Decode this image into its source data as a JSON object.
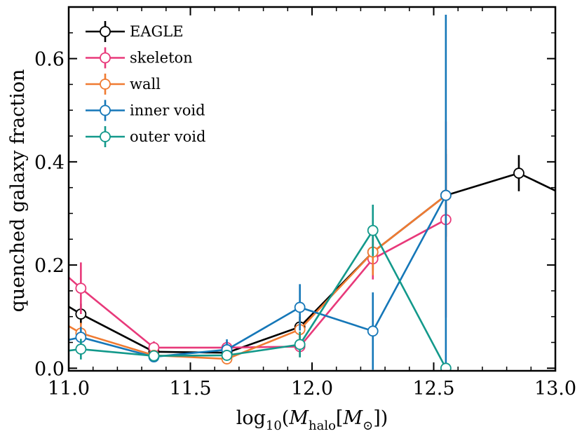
{
  "chart_data": {
    "type": "line",
    "xlabel": "log10(Mhalo[M⊙])",
    "ylabel": "quenched galaxy fraction",
    "xlim": [
      11.0,
      13.0
    ],
    "ylim": [
      -0.005,
      0.7
    ],
    "xticks": [
      11.0,
      11.5,
      12.0,
      12.5,
      13.0
    ],
    "xtick_labels": [
      "11.0",
      "11.5",
      "12.0",
      "12.5",
      "13.0"
    ],
    "yticks": [
      0.0,
      0.2,
      0.4,
      0.6
    ],
    "ytick_labels": [
      "0.0",
      "0.2",
      "0.4",
      "0.6"
    ],
    "legend_position": "top-left",
    "grid": false,
    "series": [
      {
        "name": "EAGLE",
        "color": "#000000",
        "x": [
          10.75,
          11.05,
          11.35,
          11.65,
          11.95,
          12.25,
          12.55,
          12.85,
          13.15
        ],
        "y": [
          0.19,
          0.105,
          0.032,
          0.03,
          0.08,
          0.225,
          0.335,
          0.378,
          0.31
        ],
        "err": [
          0.02,
          0.02,
          0.008,
          0.01,
          0.02,
          0.035,
          0.08,
          0.035,
          0.05
        ]
      },
      {
        "name": "skeleton",
        "color": "#E8397A",
        "x": [
          10.75,
          11.05,
          11.35,
          11.65,
          11.95,
          12.25,
          12.55
        ],
        "y": [
          0.28,
          0.155,
          0.04,
          0.04,
          0.042,
          0.212,
          0.288
        ],
        "err": [
          0.06,
          0.05,
          0.012,
          0.012,
          0.02,
          0.04,
          0.19
        ]
      },
      {
        "name": "wall",
        "color": "#F07B32",
        "x": [
          10.75,
          11.05,
          11.35,
          11.65,
          11.95,
          12.25,
          12.55
        ],
        "y": [
          0.15,
          0.068,
          0.025,
          0.018,
          0.075,
          0.225,
          0.335
        ],
        "err": [
          0.03,
          0.02,
          0.006,
          0.008,
          0.02,
          0.045,
          0.09
        ]
      },
      {
        "name": "inner void",
        "color": "#1577B8",
        "x": [
          10.75,
          11.05,
          11.35,
          11.65,
          11.95,
          12.25,
          12.55
        ],
        "y": [
          0.03,
          0.06,
          0.022,
          0.036,
          0.118,
          0.072,
          0.335
        ],
        "err": [
          0.02,
          0.02,
          0.01,
          0.02,
          0.045,
          0.075,
          0.35
        ]
      },
      {
        "name": "outer void",
        "color": "#13998B",
        "x": [
          10.75,
          11.05,
          11.35,
          11.65,
          11.95,
          12.25,
          12.55
        ],
        "y": [
          0.02,
          0.037,
          0.024,
          0.025,
          0.046,
          0.267,
          0.0
        ],
        "err": [
          0.02,
          0.02,
          0.008,
          0.008,
          0.025,
          0.05,
          0.0
        ]
      }
    ]
  }
}
